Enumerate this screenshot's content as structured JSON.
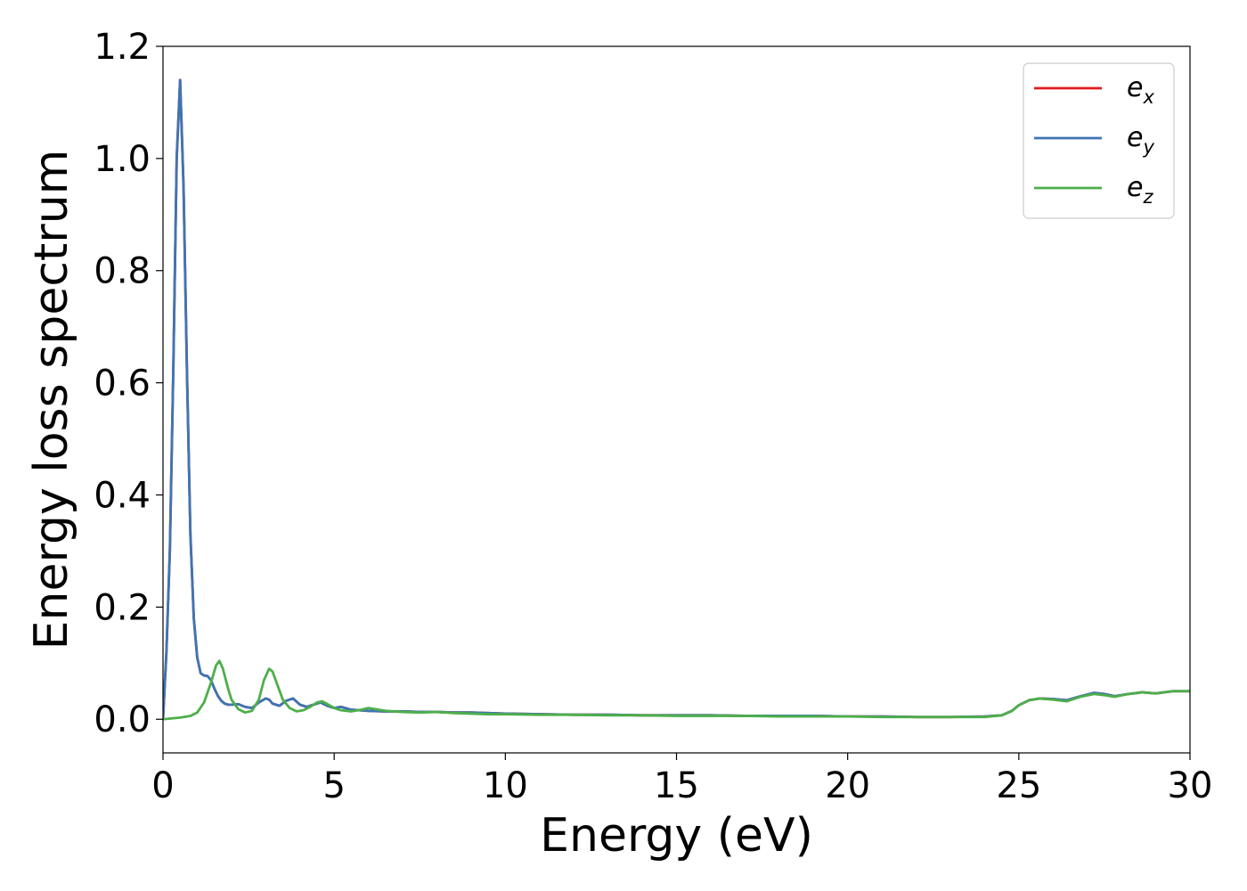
{
  "chart_data": {
    "type": "line",
    "title": "",
    "xlabel": "Energy (eV)",
    "ylabel": "Energy loss spectrum",
    "xlim": [
      0,
      30
    ],
    "ylim": [
      -0.06,
      1.2
    ],
    "xticks": [
      0,
      5,
      10,
      15,
      20,
      25,
      30
    ],
    "xtick_labels": [
      "0",
      "5",
      "10",
      "15",
      "20",
      "25",
      "30"
    ],
    "yticks": [
      0.0,
      0.2,
      0.4,
      0.6,
      0.8,
      1.0,
      1.2
    ],
    "ytick_labels": [
      "0.0",
      "0.2",
      "0.4",
      "0.6",
      "0.8",
      "1.0",
      "1.2"
    ],
    "grid": false,
    "legend_position": "top-right",
    "series": [
      {
        "name": "e_x",
        "legend_base": "e",
        "legend_sub": "x",
        "color": "#e41a1c",
        "x": [
          0,
          0.1,
          0.2,
          0.3,
          0.4,
          0.5,
          0.6,
          0.7,
          0.8,
          0.9,
          1.0,
          1.1,
          1.2,
          1.3,
          1.4,
          1.5,
          1.6,
          1.7,
          1.8,
          1.9,
          2.0,
          2.2,
          2.4,
          2.6,
          2.8,
          3.0,
          3.1,
          3.2,
          3.4,
          3.6,
          3.8,
          4.0,
          4.2,
          4.4,
          4.6,
          4.8,
          5.0,
          5.2,
          5.5,
          6.0,
          6.5,
          7.0,
          7.5,
          8.0,
          8.5,
          9.0,
          9.5,
          10,
          11,
          12,
          13,
          14,
          15,
          16,
          17,
          18,
          19,
          20,
          21,
          22,
          23,
          24,
          24.5,
          24.8,
          25.0,
          25.3,
          25.6,
          26.0,
          26.4,
          26.8,
          27.2,
          27.5,
          27.8,
          28.2,
          28.6,
          29.0,
          29.5,
          30
        ],
        "y": [
          0.0,
          0.12,
          0.3,
          0.62,
          1.0,
          1.14,
          0.95,
          0.62,
          0.33,
          0.18,
          0.11,
          0.082,
          0.078,
          0.077,
          0.07,
          0.055,
          0.042,
          0.033,
          0.028,
          0.026,
          0.026,
          0.027,
          0.022,
          0.02,
          0.03,
          0.037,
          0.035,
          0.028,
          0.024,
          0.033,
          0.037,
          0.026,
          0.022,
          0.026,
          0.03,
          0.024,
          0.02,
          0.022,
          0.017,
          0.015,
          0.014,
          0.014,
          0.013,
          0.013,
          0.012,
          0.012,
          0.011,
          0.01,
          0.009,
          0.008,
          0.008,
          0.007,
          0.007,
          0.007,
          0.006,
          0.006,
          0.006,
          0.005,
          0.005,
          0.004,
          0.004,
          0.005,
          0.007,
          0.015,
          0.025,
          0.034,
          0.037,
          0.036,
          0.034,
          0.041,
          0.047,
          0.045,
          0.041,
          0.045,
          0.048,
          0.046,
          0.05,
          0.05
        ]
      },
      {
        "name": "e_y",
        "legend_base": "e",
        "legend_sub": "y",
        "color": "#3d75b4",
        "x": [
          0,
          0.1,
          0.2,
          0.3,
          0.4,
          0.5,
          0.6,
          0.7,
          0.8,
          0.9,
          1.0,
          1.1,
          1.2,
          1.3,
          1.4,
          1.5,
          1.6,
          1.7,
          1.8,
          1.9,
          2.0,
          2.2,
          2.4,
          2.6,
          2.8,
          3.0,
          3.1,
          3.2,
          3.4,
          3.6,
          3.8,
          4.0,
          4.2,
          4.4,
          4.6,
          4.8,
          5.0,
          5.2,
          5.5,
          6.0,
          6.5,
          7.0,
          7.5,
          8.0,
          8.5,
          9.0,
          9.5,
          10,
          11,
          12,
          13,
          14,
          15,
          16,
          17,
          18,
          19,
          20,
          21,
          22,
          23,
          24,
          24.5,
          24.8,
          25.0,
          25.3,
          25.6,
          26.0,
          26.4,
          26.8,
          27.2,
          27.5,
          27.8,
          28.2,
          28.6,
          29.0,
          29.5,
          30
        ],
        "y": [
          0.0,
          0.12,
          0.3,
          0.62,
          1.0,
          1.14,
          0.95,
          0.62,
          0.33,
          0.18,
          0.11,
          0.082,
          0.078,
          0.077,
          0.07,
          0.055,
          0.042,
          0.033,
          0.028,
          0.026,
          0.026,
          0.027,
          0.022,
          0.02,
          0.03,
          0.037,
          0.035,
          0.028,
          0.024,
          0.033,
          0.037,
          0.026,
          0.022,
          0.026,
          0.03,
          0.024,
          0.02,
          0.022,
          0.017,
          0.015,
          0.014,
          0.014,
          0.013,
          0.013,
          0.012,
          0.012,
          0.011,
          0.01,
          0.009,
          0.008,
          0.008,
          0.007,
          0.007,
          0.007,
          0.006,
          0.006,
          0.006,
          0.005,
          0.005,
          0.004,
          0.004,
          0.005,
          0.007,
          0.015,
          0.025,
          0.034,
          0.037,
          0.036,
          0.034,
          0.041,
          0.047,
          0.045,
          0.041,
          0.045,
          0.048,
          0.046,
          0.05,
          0.05
        ]
      },
      {
        "name": "e_z",
        "legend_base": "e",
        "legend_sub": "z",
        "color": "#4daf4a",
        "x": [
          0,
          0.5,
          0.8,
          1.0,
          1.2,
          1.4,
          1.55,
          1.65,
          1.75,
          1.9,
          2.0,
          2.2,
          2.4,
          2.6,
          2.8,
          2.95,
          3.1,
          3.2,
          3.35,
          3.5,
          3.7,
          3.9,
          4.1,
          4.3,
          4.5,
          4.65,
          4.8,
          5.0,
          5.2,
          5.5,
          5.8,
          6.0,
          6.2,
          6.5,
          7.0,
          7.5,
          8.0,
          8.5,
          9.0,
          9.5,
          10,
          11,
          12,
          13,
          14,
          15,
          16,
          17,
          18,
          19,
          20,
          21,
          22,
          23,
          24,
          24.5,
          24.8,
          25.0,
          25.3,
          25.6,
          26.0,
          26.4,
          26.8,
          27.2,
          27.5,
          27.8,
          28.2,
          28.6,
          29.0,
          29.5,
          30
        ],
        "y": [
          0.0,
          0.003,
          0.006,
          0.012,
          0.03,
          0.065,
          0.096,
          0.104,
          0.09,
          0.055,
          0.035,
          0.018,
          0.012,
          0.015,
          0.035,
          0.07,
          0.09,
          0.085,
          0.06,
          0.035,
          0.02,
          0.014,
          0.016,
          0.022,
          0.03,
          0.032,
          0.027,
          0.02,
          0.016,
          0.014,
          0.017,
          0.02,
          0.018,
          0.015,
          0.013,
          0.012,
          0.013,
          0.011,
          0.01,
          0.009,
          0.009,
          0.008,
          0.008,
          0.007,
          0.007,
          0.006,
          0.006,
          0.006,
          0.005,
          0.005,
          0.005,
          0.004,
          0.004,
          0.004,
          0.004,
          0.007,
          0.015,
          0.025,
          0.034,
          0.037,
          0.035,
          0.032,
          0.04,
          0.045,
          0.043,
          0.04,
          0.045,
          0.048,
          0.046,
          0.05,
          0.05
        ]
      }
    ]
  }
}
